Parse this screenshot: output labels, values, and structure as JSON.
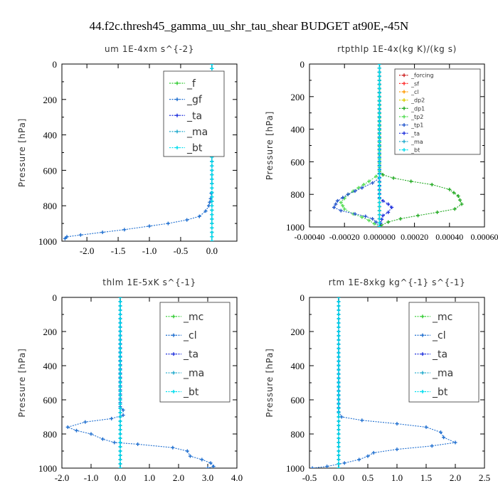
{
  "figure_title": "44.f2c.thresh45_gamma_uu_shr_tau_shear  BUDGET at90E,-45N",
  "chart_data": [
    {
      "type": "line",
      "title": "um  1E-4xm s^{-2}",
      "ylabel": "Pressure [hPa]",
      "xlim": [
        -2.4,
        0.4
      ],
      "ylim": [
        1000,
        0
      ],
      "xticks": [
        "-2.0",
        "-1.5",
        "-1.0",
        "-0.5",
        "0.0"
      ],
      "xtick_values": [
        -2.0,
        -1.5,
        -1.0,
        -0.5,
        0.0
      ],
      "yticks": [
        "0",
        "200",
        "400",
        "600",
        "800",
        "1000"
      ],
      "ytick_values": [
        0,
        200,
        400,
        600,
        800,
        1000
      ],
      "legend_placement": "top-right",
      "series": [
        {
          "name": "_f",
          "color": "#33cc33",
          "x": [
            0,
            0,
            0,
            0,
            0,
            0,
            0,
            0,
            0,
            0,
            0
          ],
          "y": [
            0,
            100,
            200,
            300,
            400,
            500,
            600,
            700,
            800,
            900,
            1000
          ]
        },
        {
          "name": "_gf",
          "color": "#1f6fd0",
          "x": [
            0,
            0,
            0,
            -0.02,
            -0.05,
            -0.1,
            -0.2,
            -0.4,
            -0.7,
            -1.0,
            -1.4,
            -1.75,
            -2.1,
            -2.32,
            -2.35
          ],
          "y": [
            0,
            400,
            700,
            760,
            800,
            830,
            860,
            880,
            900,
            915,
            935,
            950,
            965,
            975,
            985
          ]
        },
        {
          "name": "_ta",
          "color": "#2233dd",
          "x": [
            0,
            0
          ],
          "y": [
            0,
            1000
          ]
        },
        {
          "name": "_ma",
          "color": "#22aacc",
          "x": [
            0,
            0
          ],
          "y": [
            0,
            1000
          ]
        },
        {
          "name": "_bt",
          "color": "#00ddee",
          "x": [
            0,
            0
          ],
          "y": [
            0,
            1000
          ]
        }
      ]
    },
    {
      "type": "line",
      "title": "rtpthlp  1E-4x(kg K)/(kg s)",
      "ylabel": "Pressure [hPa]",
      "xlim": [
        -0.0004,
        0.0006
      ],
      "ylim": [
        1000,
        0
      ],
      "xticks": [
        "-0.00040",
        "-0.00020",
        "0.000000",
        "0.00020",
        "0.00040",
        "0.00060"
      ],
      "xtick_values": [
        -0.0004,
        -0.0002,
        0.0,
        0.0002,
        0.0004,
        0.0006
      ],
      "yticks": [
        "0",
        "200",
        "400",
        "600",
        "800",
        "1000"
      ],
      "ytick_values": [
        0,
        200,
        400,
        600,
        800,
        1000
      ],
      "legend_placement": "top-right",
      "series": [
        {
          "name": "_forcing",
          "color": "#cc2222",
          "x": [
            0,
            0
          ],
          "y": [
            0,
            1000
          ]
        },
        {
          "name": "_sf",
          "color": "#ff3333",
          "x": [
            0,
            0
          ],
          "y": [
            0,
            1000
          ]
        },
        {
          "name": "_cl",
          "color": "#ff9900",
          "x": [
            0,
            0
          ],
          "y": [
            0,
            1000
          ]
        },
        {
          "name": "_dp2",
          "color": "#ddcc00",
          "x": [
            0,
            0
          ],
          "y": [
            0,
            1000
          ]
        },
        {
          "name": "_dp1",
          "color": "#22aa22",
          "x": [
            0,
            0,
            2e-05,
            8e-05,
            0.00018,
            0.0003,
            0.0004,
            0.00045,
            0.00047,
            0.00043,
            0.00033,
            0.00022,
            0.00012,
            5e-05,
            1e-05,
            0
          ],
          "y": [
            0,
            650,
            680,
            700,
            720,
            740,
            770,
            810,
            860,
            890,
            910,
            930,
            950,
            970,
            990,
            1000
          ]
        },
        {
          "name": "_tp2",
          "color": "#55dd55",
          "x": [
            0,
            0,
            -2e-05,
            -6e-05,
            -0.00012,
            -0.00018,
            -0.00022,
            -0.0002,
            -0.00015,
            -0.0001,
            -6e-05,
            -3e-05,
            0
          ],
          "y": [
            0,
            660,
            690,
            720,
            760,
            800,
            850,
            890,
            920,
            940,
            960,
            980,
            1000
          ]
        },
        {
          "name": "_tp1",
          "color": "#2255cc",
          "x": [
            0,
            0,
            -4e-05,
            -0.0001,
            -0.00018,
            -0.00024,
            -0.00026,
            -0.00022,
            -0.00014,
            -8e-05,
            -4e-05,
            -2e-05,
            0
          ],
          "y": [
            0,
            700,
            730,
            760,
            800,
            840,
            880,
            900,
            920,
            935,
            950,
            970,
            1000
          ]
        },
        {
          "name": "_ta",
          "color": "#2233dd",
          "x": [
            0,
            0,
            2e-05,
            5e-05,
            7e-05,
            5e-05,
            2e-05,
            0
          ],
          "y": [
            0,
            820,
            840,
            860,
            880,
            910,
            930,
            1000
          ]
        },
        {
          "name": "_ma",
          "color": "#22aacc",
          "x": [
            0,
            0
          ],
          "y": [
            0,
            1000
          ]
        },
        {
          "name": "_bt",
          "color": "#00ddee",
          "x": [
            0,
            0
          ],
          "y": [
            0,
            1000
          ]
        }
      ]
    },
    {
      "type": "line",
      "title": "thlm  1E-5xK s^{-1}",
      "ylabel": "Pressure [hPa]",
      "xlim": [
        -2.0,
        4.0
      ],
      "ylim": [
        1000,
        0
      ],
      "xticks": [
        "-2.0",
        "-1.0",
        "0.0",
        "1.0",
        "2.0",
        "3.0",
        "4.0"
      ],
      "xtick_values": [
        -2.0,
        -1.0,
        0.0,
        1.0,
        2.0,
        3.0,
        4.0
      ],
      "yticks": [
        "0",
        "200",
        "400",
        "600",
        "800",
        "1000"
      ],
      "ytick_values": [
        0,
        200,
        400,
        600,
        800,
        1000
      ],
      "legend_placement": "top-right",
      "series": [
        {
          "name": "_mc",
          "color": "#33cc33",
          "x": [
            0,
            0
          ],
          "y": [
            0,
            1000
          ]
        },
        {
          "name": "_cl",
          "color": "#1f6fd0",
          "x": [
            0,
            0,
            0.1,
            0.1,
            -0.3,
            -1.2,
            -1.8,
            -1.5,
            -1.0,
            -0.6,
            -0.2,
            0.6,
            1.8,
            2.3,
            2.4,
            2.8,
            3.1,
            3.2,
            3.0
          ],
          "y": [
            0,
            640,
            660,
            690,
            710,
            730,
            760,
            780,
            800,
            830,
            850,
            860,
            880,
            900,
            930,
            950,
            970,
            990,
            1000
          ]
        },
        {
          "name": "_ta",
          "color": "#2233dd",
          "x": [
            0,
            0
          ],
          "y": [
            0,
            1000
          ]
        },
        {
          "name": "_ma",
          "color": "#22aacc",
          "x": [
            0,
            0
          ],
          "y": [
            0,
            1000
          ]
        },
        {
          "name": "_bt",
          "color": "#00ddee",
          "x": [
            0,
            0
          ],
          "y": [
            0,
            1000
          ]
        }
      ]
    },
    {
      "type": "line",
      "title": "rtm  1E-8xkg kg^{-1} s^{-1}",
      "ylabel": "Pressure [hPa]",
      "xlim": [
        -0.5,
        2.5
      ],
      "ylim": [
        1000,
        0
      ],
      "xticks": [
        "-0.5",
        "0.0",
        "0.5",
        "1.0",
        "1.5",
        "2.0",
        "2.5"
      ],
      "xtick_values": [
        -0.5,
        0.0,
        0.5,
        1.0,
        1.5,
        2.0,
        2.5
      ],
      "yticks": [
        "0",
        "200",
        "400",
        "600",
        "800",
        "1000"
      ],
      "ytick_values": [
        0,
        200,
        400,
        600,
        800,
        1000
      ],
      "legend_placement": "top-right",
      "series": [
        {
          "name": "_mc",
          "color": "#33cc33",
          "x": [
            0,
            0
          ],
          "y": [
            0,
            1000
          ]
        },
        {
          "name": "_cl",
          "color": "#1f6fd0",
          "x": [
            0,
            0,
            0.05,
            0.4,
            1.0,
            1.5,
            1.75,
            1.8,
            2.0,
            1.6,
            1.0,
            0.6,
            0.5,
            0.35,
            0.1,
            -0.2,
            -0.45
          ],
          "y": [
            0,
            670,
            700,
            720,
            740,
            760,
            790,
            820,
            850,
            870,
            890,
            910,
            930,
            950,
            970,
            990,
            1000
          ]
        },
        {
          "name": "_ta",
          "color": "#2233dd",
          "x": [
            0,
            0
          ],
          "y": [
            0,
            1000
          ]
        },
        {
          "name": "_ma",
          "color": "#22aacc",
          "x": [
            0,
            0
          ],
          "y": [
            0,
            1000
          ]
        },
        {
          "name": "_bt",
          "color": "#00ddee",
          "x": [
            0,
            0
          ],
          "y": [
            0,
            1000
          ]
        }
      ]
    }
  ]
}
